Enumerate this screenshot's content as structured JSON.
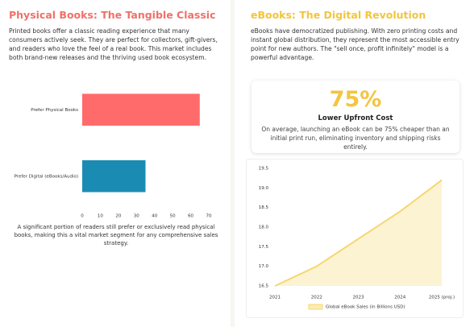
{
  "left": {
    "title": "Physical Books: The Tangible Classic",
    "text": "Printed books offer a classic reading experience that many consumers actively seek. They are perfect for collectors, gift-givers, and readers who love the feel of a real book. This market includes both brand-new releases and the thriving used book ecosystem.",
    "note": "A significant portion of readers still prefer or exclusively read physical books, making this a vital market segment for any comprehensive sales strategy."
  },
  "right": {
    "title": "eBooks: The Digital Revolution",
    "text": "eBooks have democratized publishing. With zero printing costs and instant global distribution, they represent the most accessible entry point for new authors. The \"sell once, profit infinitely\" model is a powerful advantage.",
    "stat": {
      "value": "75%",
      "label": "Lower Upfront Cost",
      "text": "On average, launching an eBook can be 75% cheaper than an initial print run, eliminating inventory and shipping risks entirely."
    }
  },
  "chart_data": [
    {
      "type": "hbar",
      "categories": [
        "Prefer Physical Books",
        "Prefer Digital (eBooks/Audio)"
      ],
      "values": [
        65,
        35
      ],
      "colors": [
        "#ff6b6b",
        "#1a8cb3"
      ],
      "xlim": [
        0,
        70
      ],
      "xticks": [
        0,
        10,
        20,
        30,
        40,
        50,
        60,
        70
      ],
      "grid": false
    },
    {
      "type": "area",
      "categories": [
        "2021",
        "2022",
        "2023",
        "2024",
        "2025 (proj.)"
      ],
      "series": [
        {
          "name": "Global eBook Sales (in Billions USD)",
          "color": "#f5d76e",
          "values": [
            16.5,
            17.0,
            17.7,
            18.4,
            19.2
          ]
        }
      ],
      "ylim": [
        16.5,
        19.5
      ],
      "yticks": [
        16.5,
        {
          "value": 17,
          "label": "17.0"
        },
        17.5,
        {
          "value": 18,
          "label": "18.0"
        },
        18.5,
        {
          "value": 19,
          "label": "19.0"
        },
        19.5
      ],
      "grid": false,
      "legend": "bottom"
    }
  ]
}
